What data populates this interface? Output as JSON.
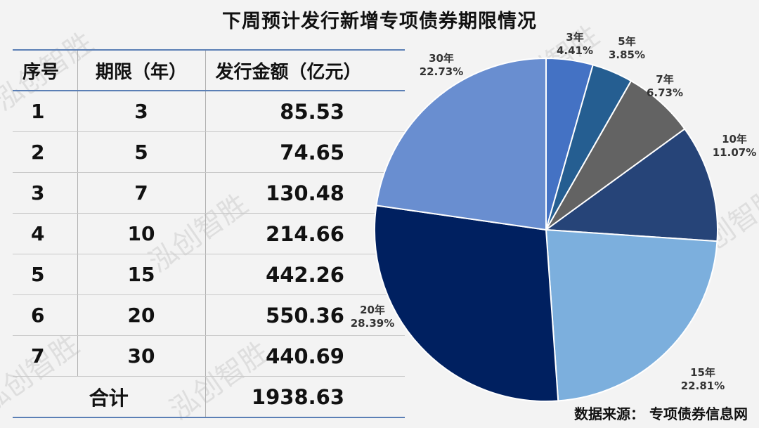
{
  "title": "下周预计发行新增专项债券期限情况",
  "table": {
    "headers": [
      "序号",
      "期限（年）",
      "发行金额（亿元）"
    ],
    "rows": [
      {
        "idx": "1",
        "term": "3",
        "amount": "85.53"
      },
      {
        "idx": "2",
        "term": "5",
        "amount": "74.65"
      },
      {
        "idx": "3",
        "term": "7",
        "amount": "130.48"
      },
      {
        "idx": "4",
        "term": "10",
        "amount": "214.66"
      },
      {
        "idx": "5",
        "term": "15",
        "amount": "442.26"
      },
      {
        "idx": "6",
        "term": "20",
        "amount": "550.36"
      },
      {
        "idx": "7",
        "term": "30",
        "amount": "440.69"
      }
    ],
    "total_label": "合计",
    "total_value": "1938.63"
  },
  "chart_data": {
    "type": "pie",
    "start": "12 o'clock, clockwise",
    "slices": [
      {
        "label": "3年",
        "pct": "4.41%",
        "value": 4.41,
        "color": "#4472c4"
      },
      {
        "label": "5年",
        "pct": "3.85%",
        "value": 3.85,
        "color": "#255e91"
      },
      {
        "label": "7年",
        "pct": "6.73%",
        "value": 6.73,
        "color": "#636363"
      },
      {
        "label": "10年",
        "pct": "11.07%",
        "value": 11.07,
        "color": "#264478"
      },
      {
        "label": "15年",
        "pct": "22.81%",
        "value": 22.81,
        "color": "#7cafdd"
      },
      {
        "label": "20年",
        "pct": "28.39%",
        "value": 28.39,
        "color": "#002060"
      },
      {
        "label": "30年",
        "pct": "22.73%",
        "value": 22.73,
        "color": "#698ed0"
      }
    ]
  },
  "watermark": "泓创智胜",
  "source": "数据来源：  专项债券信息网"
}
